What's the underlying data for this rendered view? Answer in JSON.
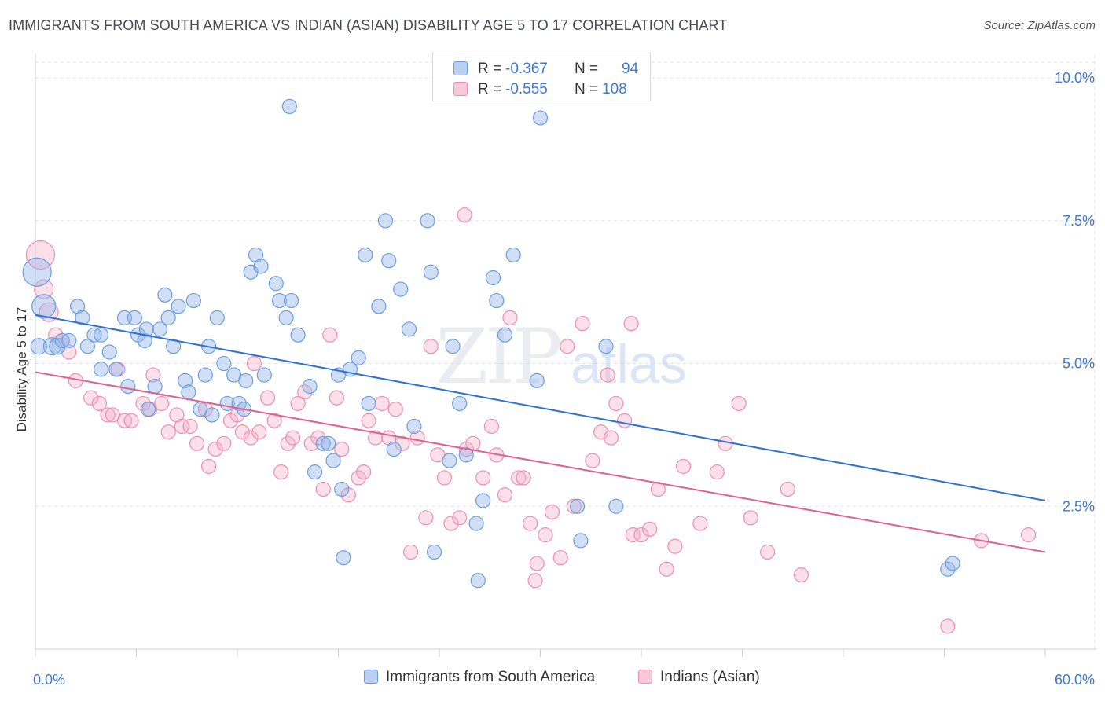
{
  "header": {
    "title": "IMMIGRANTS FROM SOUTH AMERICA VS INDIAN (ASIAN) DISABILITY AGE 5 TO 17 CORRELATION CHART",
    "source": "Source: ZipAtlas.com"
  },
  "legend": {
    "blue": {
      "r_label": "R =",
      "r_value": "-0.367",
      "n_label": "N =",
      "n_value": "94"
    },
    "pink": {
      "r_label": "R =",
      "r_value": "-0.555",
      "n_label": "N =",
      "n_value": "108"
    }
  },
  "watermark": {
    "zip": "ZIP",
    "atlas": "atlas"
  },
  "colors": {
    "blue": "#6a9de0",
    "blue_line": "#3070d0",
    "pink": "#ec8fb0",
    "pink_line": "#e0608f",
    "tick_text": "#3f78d0"
  },
  "chart_data": {
    "type": "scatter",
    "title": "IMMIGRANTS FROM SOUTH AMERICA VS INDIAN (ASIAN) DISABILITY AGE 5 TO 17 CORRELATION CHART",
    "xlabel": "",
    "ylabel": "Disability Age 5 to 17",
    "xlim": [
      0,
      60
    ],
    "ylim": [
      0,
      10.4
    ],
    "x_tick_labels": [
      "0.0%",
      "60.0%"
    ],
    "y_ticks": [
      2.5,
      5.0,
      7.5,
      10.0
    ],
    "y_tick_labels": [
      "2.5%",
      "5.0%",
      "7.5%",
      "10.0%"
    ],
    "grid": true,
    "legend_position": "top-center",
    "series": [
      {
        "name": "Immigrants from South America",
        "color": "#6a9de0",
        "trend": {
          "x": [
            0,
            60
          ],
          "y": [
            5.85,
            2.6
          ]
        },
        "points": [
          [
            0.2,
            5.3,
            10
          ],
          [
            0.5,
            6.0,
            15
          ],
          [
            0.1,
            6.6,
            18
          ],
          [
            1.0,
            5.3,
            11
          ],
          [
            1.3,
            5.3,
            10
          ],
          [
            1.6,
            5.4,
            9
          ],
          [
            2.0,
            5.4,
            9
          ],
          [
            2.5,
            6.0,
            9
          ],
          [
            2.8,
            5.8,
            9
          ],
          [
            3.1,
            5.3,
            9
          ],
          [
            3.5,
            5.5,
            9
          ],
          [
            3.9,
            5.5,
            9
          ],
          [
            3.9,
            4.9,
            9
          ],
          [
            4.4,
            5.2,
            9
          ],
          [
            4.8,
            4.9,
            9
          ],
          [
            5.3,
            5.8,
            9
          ],
          [
            5.5,
            4.6,
            9
          ],
          [
            5.9,
            5.8,
            9
          ],
          [
            6.1,
            5.5,
            9
          ],
          [
            6.5,
            5.4,
            9
          ],
          [
            6.6,
            5.6,
            9
          ],
          [
            6.7,
            4.2,
            9
          ],
          [
            7.1,
            4.6,
            9
          ],
          [
            7.4,
            5.6,
            9
          ],
          [
            7.7,
            6.2,
            9
          ],
          [
            7.9,
            5.8,
            9
          ],
          [
            8.2,
            5.3,
            9
          ],
          [
            8.5,
            6.0,
            9
          ],
          [
            8.9,
            4.7,
            9
          ],
          [
            9.1,
            4.5,
            9
          ],
          [
            9.4,
            6.1,
            9
          ],
          [
            9.8,
            4.2,
            9
          ],
          [
            10.1,
            4.8,
            9
          ],
          [
            10.3,
            5.3,
            9
          ],
          [
            10.5,
            4.1,
            9
          ],
          [
            10.8,
            5.8,
            9
          ],
          [
            11.2,
            5.0,
            9
          ],
          [
            11.4,
            4.3,
            9
          ],
          [
            11.8,
            4.8,
            9
          ],
          [
            12.1,
            4.3,
            9
          ],
          [
            12.4,
            4.2,
            9
          ],
          [
            12.5,
            4.7,
            9
          ],
          [
            12.8,
            6.6,
            9
          ],
          [
            13.1,
            6.9,
            9
          ],
          [
            13.4,
            6.7,
            9
          ],
          [
            13.6,
            4.8,
            9
          ],
          [
            14.3,
            6.4,
            9
          ],
          [
            14.5,
            6.1,
            9
          ],
          [
            14.9,
            5.8,
            9
          ],
          [
            15.2,
            6.1,
            9
          ],
          [
            15.6,
            5.5,
            9
          ],
          [
            15.1,
            9.5,
            9
          ],
          [
            16.3,
            4.6,
            9
          ],
          [
            16.6,
            3.1,
            9
          ],
          [
            17.1,
            3.6,
            9
          ],
          [
            17.4,
            3.6,
            9
          ],
          [
            17.7,
            3.3,
            9
          ],
          [
            18.0,
            4.8,
            9
          ],
          [
            18.2,
            2.8,
            9
          ],
          [
            18.3,
            1.6,
            9
          ],
          [
            18.7,
            4.9,
            9
          ],
          [
            19.2,
            5.1,
            9
          ],
          [
            19.6,
            6.9,
            9
          ],
          [
            19.8,
            4.3,
            9
          ],
          [
            20.4,
            6.0,
            9
          ],
          [
            20.8,
            7.5,
            9
          ],
          [
            21.0,
            6.8,
            9
          ],
          [
            21.3,
            3.5,
            9
          ],
          [
            21.7,
            6.3,
            9
          ],
          [
            22.2,
            5.6,
            9
          ],
          [
            22.5,
            3.9,
            9
          ],
          [
            23.3,
            7.5,
            9
          ],
          [
            23.5,
            6.6,
            9
          ],
          [
            23.7,
            1.7,
            9
          ],
          [
            24.6,
            3.3,
            9
          ],
          [
            24.8,
            5.3,
            9
          ],
          [
            25.2,
            4.3,
            9
          ],
          [
            25.6,
            3.4,
            9
          ],
          [
            26.2,
            2.2,
            9
          ],
          [
            26.3,
            1.2,
            9
          ],
          [
            26.6,
            2.6,
            9
          ],
          [
            27.2,
            6.5,
            9
          ],
          [
            27.4,
            6.1,
            9
          ],
          [
            27.9,
            5.5,
            9
          ],
          [
            28.4,
            6.9,
            9
          ],
          [
            29.8,
            4.7,
            9
          ],
          [
            30.0,
            9.3,
            9
          ],
          [
            32.2,
            2.5,
            9
          ],
          [
            32.4,
            1.9,
            9
          ],
          [
            33.9,
            5.3,
            9
          ],
          [
            34.5,
            2.5,
            9
          ],
          [
            54.2,
            1.4,
            9
          ],
          [
            54.5,
            1.5,
            9
          ]
        ]
      },
      {
        "name": "Indians (Asian)",
        "color": "#ec8fb0",
        "trend": {
          "x": [
            0,
            60
          ],
          "y": [
            4.85,
            1.7
          ]
        },
        "points": [
          [
            0.3,
            6.9,
            18
          ],
          [
            0.5,
            6.3,
            12
          ],
          [
            0.8,
            5.9,
            12
          ],
          [
            1.2,
            5.5,
            9
          ],
          [
            1.6,
            5.4,
            9
          ],
          [
            2.0,
            5.2,
            9
          ],
          [
            2.4,
            4.7,
            9
          ],
          [
            3.3,
            4.4,
            9
          ],
          [
            3.8,
            4.3,
            9
          ],
          [
            4.3,
            4.1,
            9
          ],
          [
            4.6,
            4.1,
            9
          ],
          [
            4.9,
            4.9,
            9
          ],
          [
            5.3,
            4.0,
            9
          ],
          [
            5.7,
            4.0,
            9
          ],
          [
            6.4,
            4.3,
            9
          ],
          [
            6.8,
            4.2,
            9
          ],
          [
            7.0,
            4.8,
            9
          ],
          [
            7.5,
            4.3,
            9
          ],
          [
            7.9,
            3.8,
            9
          ],
          [
            8.4,
            4.1,
            9
          ],
          [
            8.7,
            3.9,
            9
          ],
          [
            9.2,
            3.9,
            9
          ],
          [
            9.6,
            3.6,
            9
          ],
          [
            10.1,
            4.2,
            9
          ],
          [
            10.3,
            3.2,
            9
          ],
          [
            10.7,
            3.5,
            9
          ],
          [
            11.2,
            3.6,
            9
          ],
          [
            11.6,
            4.0,
            9
          ],
          [
            12.0,
            4.1,
            9
          ],
          [
            12.3,
            3.8,
            9
          ],
          [
            12.8,
            3.7,
            9
          ],
          [
            13.0,
            5.0,
            9
          ],
          [
            13.3,
            3.8,
            9
          ],
          [
            13.8,
            4.4,
            9
          ],
          [
            14.2,
            4.0,
            9
          ],
          [
            14.6,
            3.1,
            9
          ],
          [
            15.0,
            3.6,
            9
          ],
          [
            15.3,
            3.7,
            9
          ],
          [
            15.6,
            4.3,
            9
          ],
          [
            16.0,
            4.5,
            9
          ],
          [
            16.4,
            3.6,
            9
          ],
          [
            16.8,
            3.7,
            9
          ],
          [
            17.1,
            2.8,
            9
          ],
          [
            17.5,
            5.5,
            9
          ],
          [
            17.9,
            4.4,
            9
          ],
          [
            18.2,
            3.5,
            9
          ],
          [
            18.6,
            2.7,
            9
          ],
          [
            19.2,
            3.0,
            9
          ],
          [
            19.5,
            3.1,
            9
          ],
          [
            19.8,
            4.0,
            9
          ],
          [
            20.2,
            3.7,
            9
          ],
          [
            20.6,
            4.3,
            9
          ],
          [
            21.0,
            3.7,
            9
          ],
          [
            21.4,
            4.2,
            9
          ],
          [
            21.8,
            3.6,
            9
          ],
          [
            22.3,
            1.7,
            9
          ],
          [
            22.7,
            3.7,
            9
          ],
          [
            23.2,
            2.3,
            9
          ],
          [
            23.5,
            5.3,
            9
          ],
          [
            23.9,
            3.4,
            9
          ],
          [
            24.3,
            3.0,
            9
          ],
          [
            24.7,
            2.2,
            9
          ],
          [
            25.2,
            2.3,
            9
          ],
          [
            25.6,
            3.5,
            9
          ],
          [
            26.0,
            3.6,
            9
          ],
          [
            26.6,
            3.0,
            9
          ],
          [
            27.1,
            3.9,
            9
          ],
          [
            27.4,
            3.4,
            9
          ],
          [
            27.9,
            2.7,
            9
          ],
          [
            28.2,
            5.8,
            9
          ],
          [
            28.7,
            3.0,
            9
          ],
          [
            29.0,
            3.0,
            9
          ],
          [
            29.4,
            2.2,
            9
          ],
          [
            29.8,
            1.5,
            9
          ],
          [
            30.3,
            2.0,
            9
          ],
          [
            30.7,
            2.4,
            9
          ],
          [
            31.2,
            1.6,
            9
          ],
          [
            31.6,
            5.3,
            9
          ],
          [
            32.0,
            2.5,
            9
          ],
          [
            32.5,
            5.7,
            9
          ],
          [
            33.1,
            3.3,
            9
          ],
          [
            33.6,
            3.8,
            9
          ],
          [
            34.0,
            4.8,
            9
          ],
          [
            34.5,
            4.3,
            9
          ],
          [
            35.0,
            4.0,
            9
          ],
          [
            35.5,
            2.0,
            9
          ],
          [
            36.0,
            2.0,
            9
          ],
          [
            36.5,
            2.1,
            9
          ],
          [
            37.0,
            2.8,
            9
          ],
          [
            37.5,
            1.4,
            9
          ],
          [
            38.0,
            1.8,
            9
          ],
          [
            38.5,
            3.2,
            9
          ],
          [
            39.5,
            2.2,
            9
          ],
          [
            40.5,
            3.1,
            9
          ],
          [
            41.0,
            3.6,
            9
          ],
          [
            41.8,
            4.3,
            9
          ],
          [
            42.5,
            2.3,
            9
          ],
          [
            43.5,
            1.7,
            9
          ],
          [
            44.7,
            2.8,
            9
          ],
          [
            45.5,
            1.3,
            9
          ],
          [
            25.5,
            7.6,
            9
          ],
          [
            34.2,
            3.7,
            9
          ],
          [
            29.7,
            1.2,
            9
          ],
          [
            35.4,
            5.7,
            9
          ],
          [
            54.2,
            0.4,
            9
          ],
          [
            56.2,
            1.9,
            9
          ],
          [
            59.0,
            2.0,
            9
          ]
        ]
      }
    ]
  },
  "bottom_legend": {
    "blue_label": "Immigrants from South America",
    "pink_label": "Indians (Asian)"
  }
}
